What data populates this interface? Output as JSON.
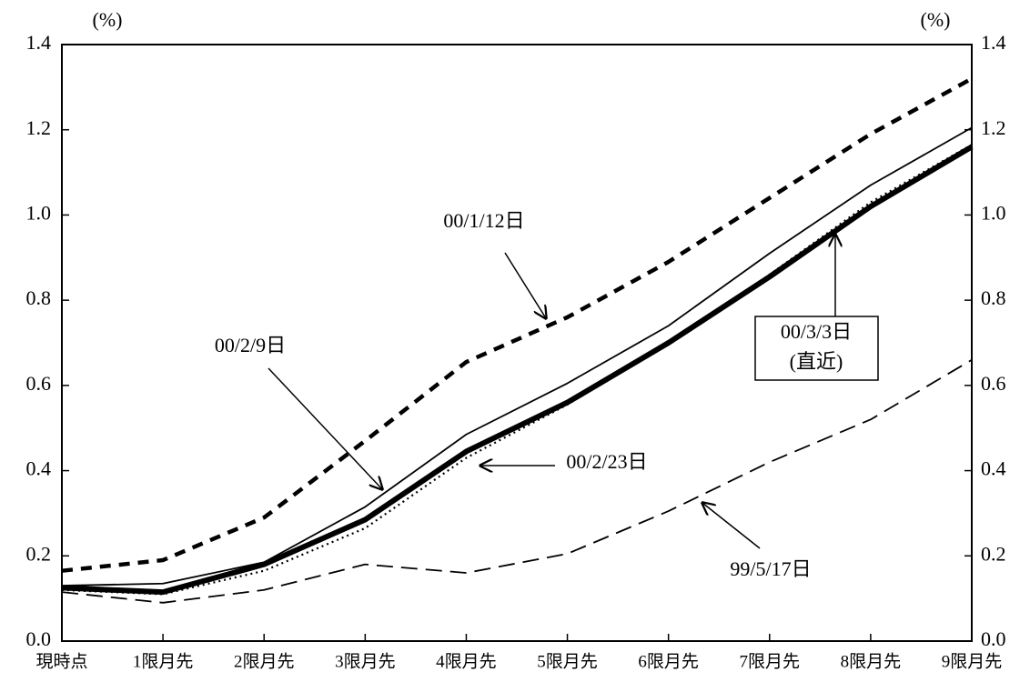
{
  "chart_data": {
    "type": "line",
    "y_label": "(%)",
    "y2_label": "(%)",
    "categories": [
      "現時点",
      "1限月先",
      "2限月先",
      "3限月先",
      "4限月先",
      "5限月先",
      "6限月先",
      "7限月先",
      "8限月先",
      "9限月先"
    ],
    "ylim": [
      0,
      1.4
    ],
    "yticks": [
      {
        "value": 0,
        "label": "0.0"
      },
      0.2,
      0.4,
      0.6,
      0.8,
      {
        "value": 1,
        "label": "1.0"
      },
      1.2,
      1.4
    ],
    "series": [
      {
        "name": "00/1/12日",
        "color": "#000000",
        "style": "dashed-thick",
        "values": [
          0.165,
          0.19,
          0.29,
          0.47,
          0.655,
          0.76,
          0.89,
          1.04,
          1.19,
          1.32
        ]
      },
      {
        "name": "00/2/9日",
        "color": "#000000",
        "style": "solid-thin",
        "values": [
          0.13,
          0.135,
          0.185,
          0.315,
          0.485,
          0.605,
          0.74,
          0.91,
          1.07,
          1.205
        ]
      },
      {
        "name": "00/3/3日",
        "note": "(直近)",
        "color": "#000000",
        "style": "solid-thick",
        "values": [
          0.125,
          0.115,
          0.18,
          0.285,
          0.445,
          0.56,
          0.7,
          0.855,
          1.02,
          1.16
        ]
      },
      {
        "name": "00/2/23日",
        "color": "#000000",
        "style": "dotted",
        "values": [
          0.12,
          0.11,
          0.165,
          0.265,
          0.43,
          0.555,
          0.7,
          0.86,
          1.03,
          1.165
        ]
      },
      {
        "name": "99/5/17日",
        "color": "#000000",
        "style": "dashed-thin",
        "values": [
          0.115,
          0.09,
          0.12,
          0.18,
          0.16,
          0.205,
          0.305,
          0.42,
          0.52,
          0.66
        ]
      }
    ]
  }
}
